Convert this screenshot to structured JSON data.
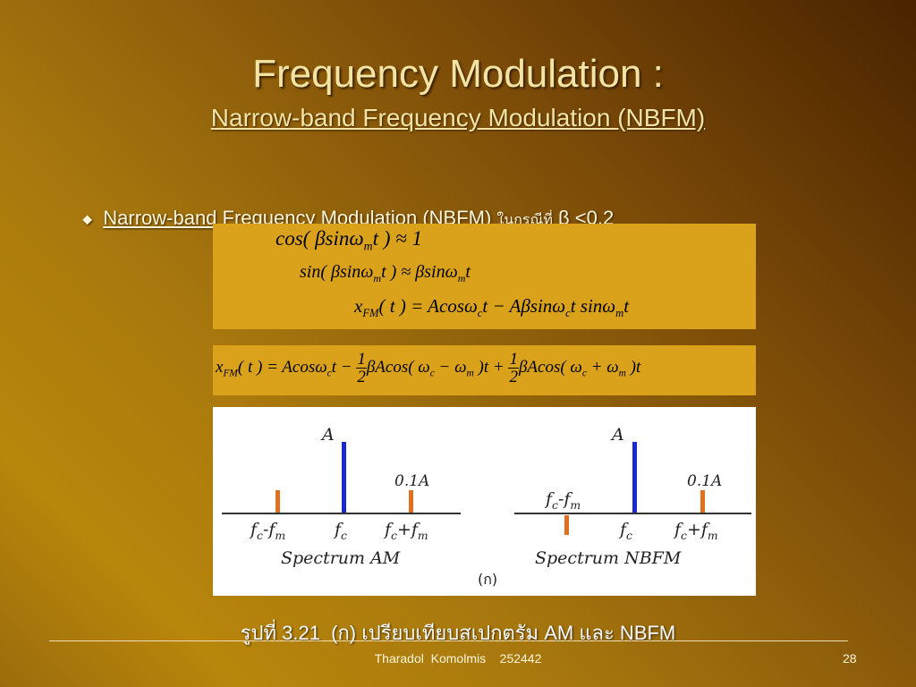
{
  "title": "Frequency Modulation :",
  "subtitle": "Narrow-band Frequency Modulation (NBFM)",
  "bullet": {
    "link": "Narrow-band Frequency Modulation (NBFM)",
    "thai": "ในกรณีที่",
    "condition": "β <0.2"
  },
  "equations": [
    [
      {
        "t": "cos( βsinω"
      },
      {
        "sub": "m"
      },
      {
        "t": "t ) ≈ 1"
      }
    ],
    [
      {
        "t": "sin( βsinω"
      },
      {
        "sub": "m"
      },
      {
        "t": "t ) ≈ βsinω"
      },
      {
        "sub": "m"
      },
      {
        "t": "t"
      }
    ],
    [
      {
        "t": "x"
      },
      {
        "sub": "FM"
      },
      {
        "t": "( t ) = Acosω"
      },
      {
        "sub": "c"
      },
      {
        "t": "t − Aβsinω"
      },
      {
        "sub": "c"
      },
      {
        "t": "t sinω"
      },
      {
        "sub": "m"
      },
      {
        "t": "t"
      }
    ],
    [
      {
        "t": "x"
      },
      {
        "sub": "FM"
      },
      {
        "t": "( t ) = Acosω"
      },
      {
        "sub": "c"
      },
      {
        "t": "t − "
      },
      {
        "num": "1",
        "den": "2"
      },
      {
        "t": "βAcos( ω"
      },
      {
        "sub": "c"
      },
      {
        "t": " − ω"
      },
      {
        "sub": "m"
      },
      {
        "t": " )t + "
      },
      {
        "num": "1",
        "den": "2"
      },
      {
        "t": "βAcos( ω"
      },
      {
        "sub": "c"
      },
      {
        "t": " + ω"
      },
      {
        "sub": "m"
      },
      {
        "t": " )t"
      }
    ]
  ],
  "figure": {
    "am": {
      "carrier_amplitude": "A",
      "side_amplitude": "0.1A",
      "lower": [
        {
          "t": "f"
        },
        {
          "sub": "c"
        },
        {
          "t": "-f"
        },
        {
          "sub": "m"
        }
      ],
      "center": [
        {
          "t": "f"
        },
        {
          "sub": "c"
        }
      ],
      "upper": [
        {
          "t": "f"
        },
        {
          "sub": "c"
        },
        {
          "t": "+f"
        },
        {
          "sub": "m"
        }
      ],
      "caption": "Spectrum AM"
    },
    "nbfm": {
      "carrier_amplitude": "A",
      "side_amplitude": "0.1A",
      "lower": [
        {
          "t": "f"
        },
        {
          "sub": "c"
        },
        {
          "t": "-f"
        },
        {
          "sub": "m"
        }
      ],
      "center": [
        {
          "t": "f"
        },
        {
          "sub": "c"
        }
      ],
      "upper": [
        {
          "t": "f"
        },
        {
          "sub": "c"
        },
        {
          "t": "+f"
        },
        {
          "sub": "m"
        }
      ],
      "caption": "Spectrum NBFM"
    },
    "tag": "(ก)"
  },
  "caption": "รูปที่ 3.21  (ก) เปรียบเทียบสเปกตรัม AM และ NBFM",
  "footer": {
    "author": "Tharadol  Komolmis    252442",
    "page": "28"
  }
}
